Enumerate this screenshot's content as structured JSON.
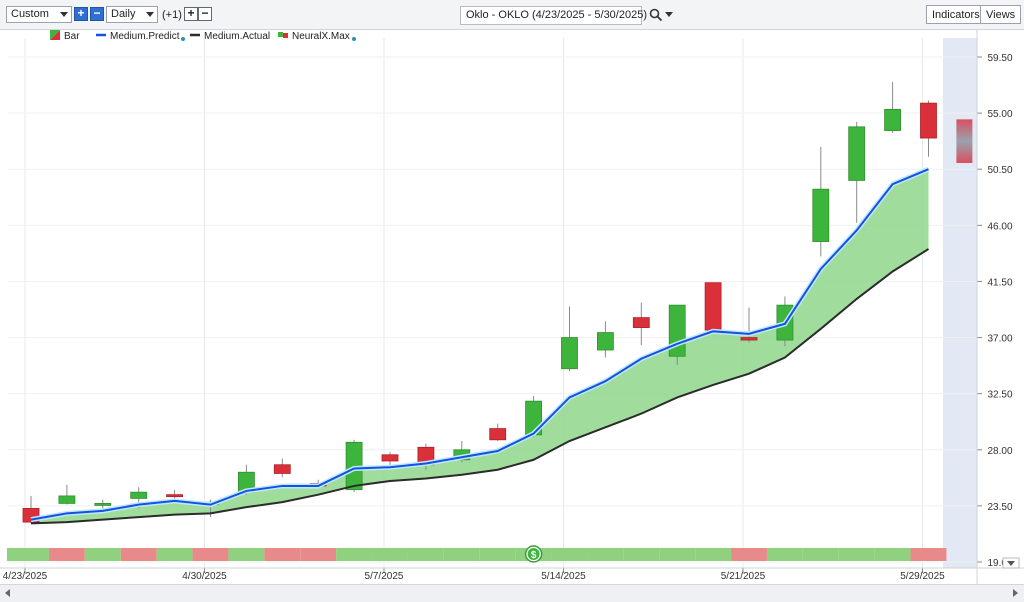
{
  "toolbar": {
    "period": "Custom",
    "interval": "Daily",
    "offset": "(+1)",
    "plus": "+",
    "minus": "−",
    "title": "Oklo - OKLO (4/23/2025 - 5/30/2025)",
    "indicators": "Indicators",
    "views": "Views"
  },
  "legend": {
    "bar": "Bar",
    "predict": "Medium.Predict",
    "actual": "Medium.Actual",
    "neural": "NeuralX.Max"
  },
  "colors": {
    "up": "#3db53d",
    "down": "#d9303a",
    "predict": "#1452e0",
    "actual": "#2b2b2b",
    "fill": "#8fd68a",
    "band_green": "#8fd17e",
    "band_red": "#e88a8a",
    "forecast_bg": "#e3e9f4"
  },
  "chart_data": {
    "type": "candlestick",
    "title": "Oklo - OKLO (4/23/2025 - 5/30/2025)",
    "ylim": [
      19.0,
      61.0
    ],
    "y_ticks": [
      "59.50",
      "55.00",
      "50.50",
      "46.00",
      "41.50",
      "37.00",
      "32.50",
      "28.00",
      "23.50",
      "19.00"
    ],
    "x_ticks": [
      {
        "label": "4/23/2025",
        "index": 0
      },
      {
        "label": "4/30/2025",
        "index": 5
      },
      {
        "label": "5/7/2025",
        "index": 10
      },
      {
        "label": "5/14/2025",
        "index": 15
      },
      {
        "label": "5/21/2025",
        "index": 20
      },
      {
        "label": "5/29/2025",
        "index": 25
      }
    ],
    "candles": [
      {
        "o": 23.3,
        "h": 24.3,
        "l": 22.1,
        "c": 22.2
      },
      {
        "o": 23.7,
        "h": 25.2,
        "l": 23.6,
        "c": 24.3
      },
      {
        "o": 23.6,
        "h": 24.0,
        "l": 23.3,
        "c": 23.7
      },
      {
        "o": 24.1,
        "h": 25.0,
        "l": 23.3,
        "c": 24.6
      },
      {
        "o": 24.4,
        "h": 24.8,
        "l": 24.1,
        "c": 24.3
      },
      {
        "o": 23.6,
        "h": 24.0,
        "l": 22.6,
        "c": 23.8
      },
      {
        "o": 24.6,
        "h": 26.8,
        "l": 24.4,
        "c": 26.2
      },
      {
        "o": 26.8,
        "h": 27.3,
        "l": 25.8,
        "c": 26.1
      },
      {
        "o": 25.3,
        "h": 25.6,
        "l": 25.0,
        "c": 25.1
      },
      {
        "o": 24.8,
        "h": 28.8,
        "l": 24.6,
        "c": 28.6
      },
      {
        "o": 27.6,
        "h": 27.8,
        "l": 26.6,
        "c": 27.1
      },
      {
        "o": 28.2,
        "h": 28.5,
        "l": 26.4,
        "c": 26.8
      },
      {
        "o": 27.2,
        "h": 28.7,
        "l": 27.0,
        "c": 28.0
      },
      {
        "o": 29.7,
        "h": 30.1,
        "l": 28.7,
        "c": 28.8
      },
      {
        "o": 29.2,
        "h": 32.3,
        "l": 29.0,
        "c": 31.9
      },
      {
        "o": 34.5,
        "h": 39.5,
        "l": 34.3,
        "c": 37.0
      },
      {
        "o": 36.0,
        "h": 38.3,
        "l": 35.4,
        "c": 37.4
      },
      {
        "o": 38.6,
        "h": 39.8,
        "l": 36.4,
        "c": 37.8
      },
      {
        "o": 35.5,
        "h": 39.6,
        "l": 34.8,
        "c": 39.6
      },
      {
        "o": 41.4,
        "h": 41.4,
        "l": 37.3,
        "c": 37.6
      },
      {
        "o": 37.0,
        "h": 39.4,
        "l": 36.6,
        "c": 36.8
      },
      {
        "o": 36.8,
        "h": 40.3,
        "l": 36.3,
        "c": 39.6
      },
      {
        "o": 44.7,
        "h": 52.3,
        "l": 43.5,
        "c": 48.9
      },
      {
        "o": 49.6,
        "h": 54.3,
        "l": 46.2,
        "c": 53.9
      },
      {
        "o": 53.6,
        "h": 57.5,
        "l": 53.4,
        "c": 55.3
      },
      {
        "o": 55.8,
        "h": 56.0,
        "l": 51.5,
        "c": 53.0
      }
    ],
    "medium_predict": [
      22.4,
      22.9,
      23.1,
      23.6,
      23.9,
      23.6,
      24.7,
      25.1,
      25.1,
      26.5,
      26.6,
      26.9,
      27.4,
      27.9,
      29.3,
      32.2,
      33.5,
      35.3,
      36.5,
      37.5,
      37.3,
      38.1,
      42.5,
      45.6,
      49.3,
      50.5
    ],
    "medium_actual": [
      22.1,
      22.2,
      22.4,
      22.6,
      22.8,
      22.9,
      23.4,
      23.8,
      24.4,
      25.1,
      25.5,
      25.7,
      26.0,
      26.4,
      27.2,
      28.7,
      29.8,
      30.9,
      32.2,
      33.2,
      34.1,
      35.4,
      37.7,
      40.1,
      42.3,
      44.1
    ],
    "neuralx_max": {
      "high": 54.5,
      "low": 51.0
    },
    "signal_band": [
      "G",
      "R",
      "G",
      "R",
      "G",
      "R",
      "G",
      "R",
      "R",
      "G",
      "G",
      "G",
      "G",
      "G",
      "G",
      "G",
      "G",
      "G",
      "G",
      "G",
      "R",
      "G",
      "G",
      "G",
      "G",
      "R"
    ],
    "band_marker_symbol": "$"
  }
}
